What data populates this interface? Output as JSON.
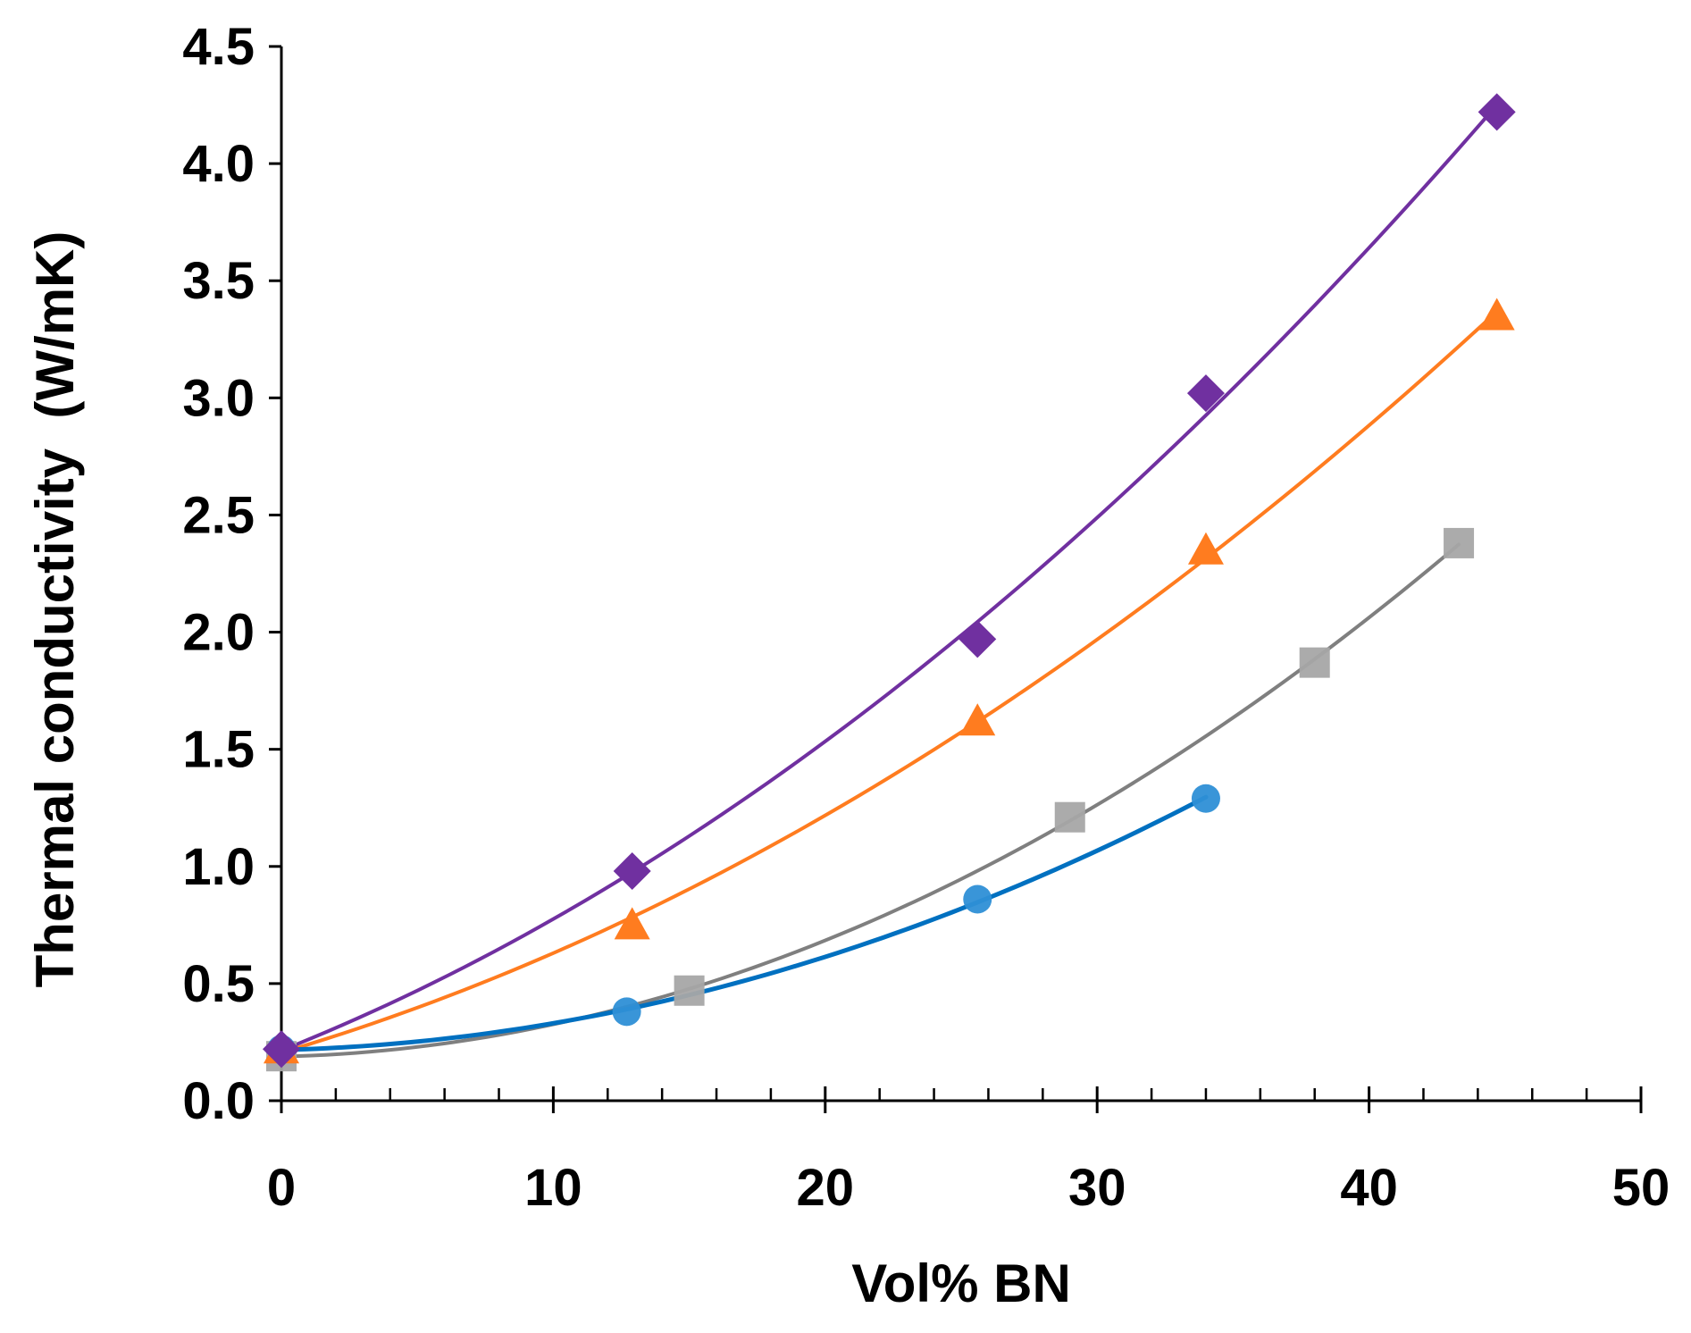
{
  "chart_data": {
    "type": "scatter",
    "title": "",
    "xlabel": "Vol% BN",
    "ylabel": "Thermal conductivity  (W/mK)",
    "xlim": [
      0,
      50
    ],
    "ylim": [
      0,
      4.5
    ],
    "x_ticks": [
      0,
      10,
      20,
      30,
      40,
      50
    ],
    "x_tick_labels": [
      "0",
      "10",
      "20",
      "30",
      "40",
      "50"
    ],
    "x_minor_step": 2,
    "y_ticks": [
      0,
      0.5,
      1.0,
      1.5,
      2.0,
      2.5,
      3.0,
      3.5,
      4.0,
      4.5
    ],
    "y_tick_labels": [
      "0.0",
      "0.5",
      "1.0",
      "1.5",
      "2.0",
      "2.5",
      "3.0",
      "3.5",
      "4.0",
      "4.5"
    ],
    "grid": false,
    "legend": "none",
    "series": [
      {
        "name": "purple diamonds",
        "marker": "diamond",
        "color": "#7030a0",
        "x": [
          0,
          12.9,
          25.6,
          34.0,
          44.7
        ],
        "y": [
          0.22,
          0.98,
          1.97,
          3.02,
          4.22
        ],
        "trendline": "fit"
      },
      {
        "name": "orange triangles",
        "marker": "triangle",
        "color": "#ff7c1f",
        "x": [
          0,
          12.9,
          25.6,
          34.0,
          44.7
        ],
        "y": [
          0.22,
          0.75,
          1.62,
          2.35,
          3.35
        ],
        "trendline": "fit"
      },
      {
        "name": "grey squares",
        "marker": "square",
        "color": "#a6a6a6",
        "line_color": "#7f7f7f",
        "x": [
          0,
          15.0,
          29.0,
          38.0,
          43.3
        ],
        "y": [
          0.19,
          0.47,
          1.21,
          1.87,
          2.38
        ],
        "trendline": "fit"
      },
      {
        "name": "blue circles",
        "marker": "circle",
        "color": "#2e8fd6",
        "line_color": "#0070c0",
        "x": [
          0,
          12.7,
          25.6,
          34.0
        ],
        "y": [
          0.22,
          0.38,
          0.86,
          1.29
        ],
        "trendline": "fit"
      }
    ]
  }
}
